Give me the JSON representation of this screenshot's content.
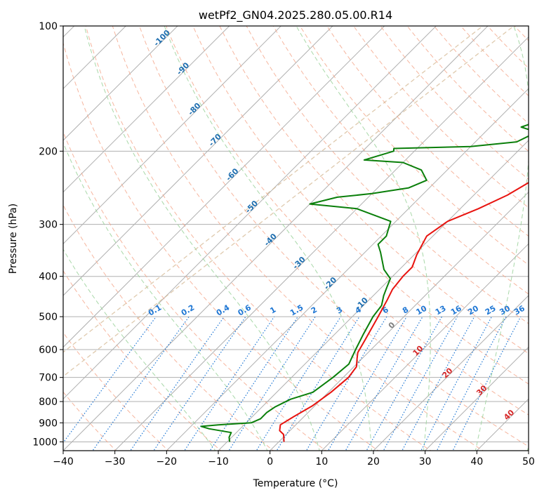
{
  "chart_data": {
    "type": "line",
    "title": "wetPf2_GN04.2025.280.05.00.R14",
    "xlabel": "Temperature (°C)",
    "ylabel": "Pressure (hPa)",
    "xlim": [
      -40,
      50
    ],
    "ylim": [
      1050,
      100
    ],
    "y_scale": "log",
    "grid": true,
    "x_ticks": [
      -40,
      -30,
      -20,
      -10,
      0,
      10,
      20,
      30,
      40,
      50
    ],
    "x_tick_labels": [
      "−40",
      "−30",
      "−20",
      "−10",
      "0",
      "10",
      "20",
      "30",
      "40",
      "50"
    ],
    "y_ticks": [
      100,
      200,
      300,
      400,
      500,
      600,
      700,
      800,
      900,
      1000
    ],
    "y_tick_labels": [
      "100",
      "200",
      "300",
      "400",
      "500",
      "600",
      "700",
      "800",
      "900",
      "1000"
    ],
    "series": [
      {
        "name": "Temperature",
        "color": "#e8130f",
        "points": [
          [
            1,
            1000
          ],
          [
            -0.5,
            960
          ],
          [
            -2,
            940
          ],
          [
            -3,
            910
          ],
          [
            -2,
            870
          ],
          [
            -0.5,
            820
          ],
          [
            0.5,
            760
          ],
          [
            1,
            700
          ],
          [
            0.5,
            660
          ],
          [
            -1,
            630
          ],
          [
            -2,
            610
          ],
          [
            -3,
            570
          ],
          [
            -5,
            500
          ],
          [
            -6.5,
            455
          ],
          [
            -7.5,
            430
          ],
          [
            -8,
            400
          ],
          [
            -8,
            380
          ],
          [
            -9.5,
            355
          ],
          [
            -11.2,
            320
          ],
          [
            -10,
            295
          ],
          [
            -6.5,
            275
          ],
          [
            -3.5,
            255
          ],
          [
            -1.5,
            235
          ],
          [
            1,
            220
          ],
          [
            6,
            207
          ],
          [
            10,
            195
          ],
          [
            13,
            180
          ],
          [
            17,
            160
          ],
          [
            20,
            148
          ],
          [
            26,
            128
          ],
          [
            30,
            115
          ],
          [
            32,
            106
          ],
          [
            33,
            100
          ]
        ]
      },
      {
        "name": "Dewpoint",
        "color": "#0a7f0a",
        "points": [
          [
            -9.5,
            1000
          ],
          [
            -10.5,
            975
          ],
          [
            -11,
            950
          ],
          [
            -16,
            930
          ],
          [
            -18,
            918
          ],
          [
            -15,
            910
          ],
          [
            -9,
            900
          ],
          [
            -8,
            880
          ],
          [
            -8,
            850
          ],
          [
            -7.5,
            825
          ],
          [
            -6,
            790
          ],
          [
            -3,
            760
          ],
          [
            -2,
            700
          ],
          [
            -1.5,
            650
          ],
          [
            -3,
            600
          ],
          [
            -4.5,
            550
          ],
          [
            -6,
            500
          ],
          [
            -6.5,
            470
          ],
          [
            -8,
            445
          ],
          [
            -9,
            425
          ],
          [
            -10,
            405
          ],
          [
            -13,
            385
          ],
          [
            -17,
            350
          ],
          [
            -19,
            335
          ],
          [
            -19,
            320
          ],
          [
            -21,
            295
          ],
          [
            -30,
            275
          ],
          [
            -40,
            268
          ],
          [
            -36,
            258
          ],
          [
            -30,
            253
          ],
          [
            -24,
            245
          ],
          [
            -22,
            235
          ],
          [
            -25,
            222
          ],
          [
            -30,
            213
          ],
          [
            -38,
            210
          ],
          [
            -34,
            200
          ],
          [
            -34.5,
            197
          ],
          [
            -20,
            195
          ],
          [
            -12,
            190
          ],
          [
            -10,
            180
          ],
          [
            -14,
            175
          ],
          [
            -12,
            170
          ],
          [
            -9,
            160
          ],
          [
            -6,
            150
          ],
          [
            -4,
            142
          ],
          [
            -5,
            133
          ],
          [
            -12,
            128
          ],
          [
            -22,
            126
          ],
          [
            -22,
            115
          ],
          [
            -20,
            108
          ],
          [
            -15,
            107
          ],
          [
            -5,
            104
          ],
          [
            1,
            100
          ]
        ]
      }
    ],
    "background_lines": {
      "isotherms_step_c": 10,
      "dry_adiabats_theta_k": [
        190,
        200,
        210,
        220,
        230,
        240,
        250,
        260,
        270,
        280,
        290,
        300,
        310,
        320,
        330,
        340,
        350,
        360,
        370,
        380,
        390,
        400,
        410,
        420,
        430,
        440,
        450,
        460,
        470,
        480,
        490,
        500,
        510,
        520,
        530,
        540
      ],
      "moist_adiabats_c": [
        -10,
        0,
        10,
        20,
        30,
        40,
        50
      ],
      "mixing_ratios_g_kg": [
        0.1,
        0.2,
        0.4,
        0.6,
        1,
        1.5,
        2,
        3,
        4,
        6,
        8,
        10,
        13,
        16,
        20,
        25,
        30,
        36
      ],
      "isotherm_labels": [
        "-100",
        "-90",
        "-80",
        "-70",
        "-60",
        "-50",
        "-40",
        "-30",
        "-20",
        "-10",
        "0",
        "10",
        "20",
        "30",
        "40"
      ],
      "mixing_ratio_labels": [
        "0.1",
        "0.2",
        "0.4",
        "0.6",
        "1",
        "1.5",
        "2",
        "3",
        "4",
        "6",
        "8",
        "10",
        "13",
        "16",
        "20",
        "25",
        "30",
        "36"
      ]
    },
    "colors": {
      "grid": "#b0b0b0",
      "dry_adiabat": "#f5a98e",
      "moist_adiabat": "#9fd49f",
      "mixing_ratio": "#1f77d4",
      "label_cold": "#1f6fb0",
      "label_warm": "#d62728",
      "label_zero": "#808080",
      "tan": "#d2b48c"
    }
  }
}
